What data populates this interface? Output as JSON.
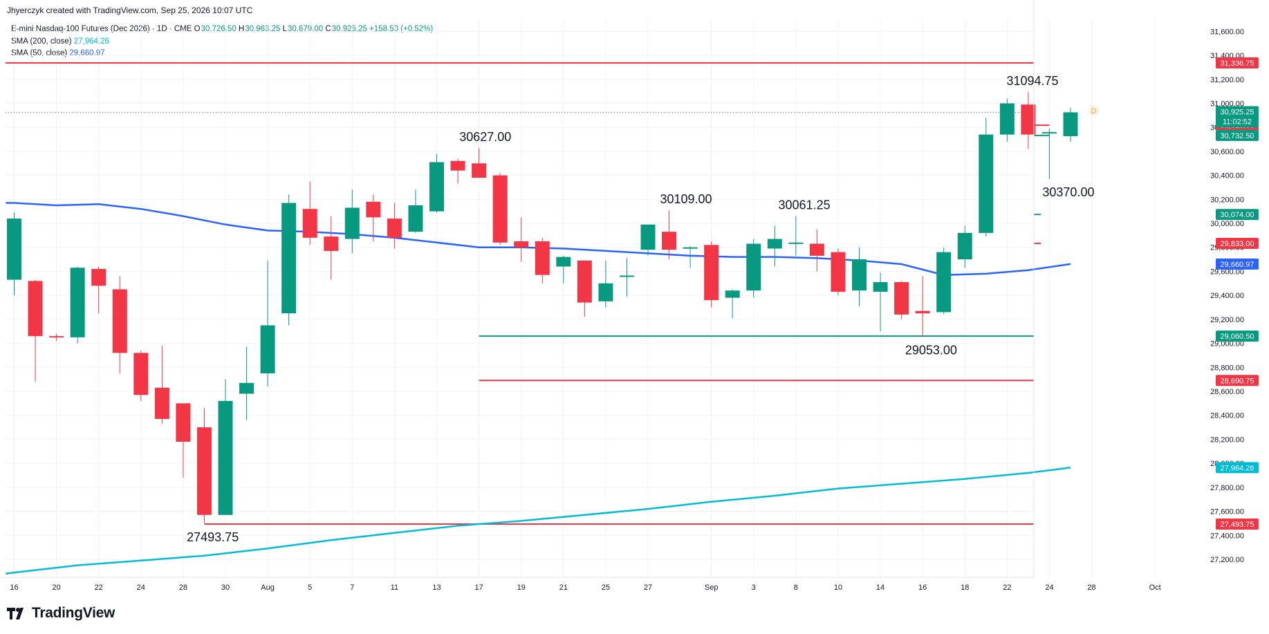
{
  "header": {
    "created_by": "Jhyerczyk created with TradingView.com, Sep 25, 2026 10:07 UTC"
  },
  "legend": {
    "symbol": "E-mini Nasdaq-100 Futures (Dec 2026) · 1D · CME",
    "o_label": "O",
    "o_val": "30,726.50",
    "h_label": "H",
    "h_val": "30,963.25",
    "l_label": "L",
    "l_val": "30,679.00",
    "c_label": "C",
    "c_val": "30,925.25",
    "change": "+158.50 (+0.52%)",
    "sma200_label": "SMA (200, close)",
    "sma200_val": "27,964.26",
    "sma50_label": "SMA (50, close)",
    "sma50_val": "29,660.97"
  },
  "brand": {
    "name": "TradingView"
  },
  "colors": {
    "up": "#089981",
    "down": "#f23645",
    "sma50": "#2962ff",
    "sma200": "#00bcd4",
    "grid": "#f0f3fa",
    "red_line": "#f23645",
    "green_line": "#089981",
    "earnings_marker": "#ff9800"
  },
  "chart_data": {
    "type": "candlestick",
    "title": "E-mini Nasdaq-100 Futures (Dec 2026)",
    "interval": "1D",
    "ylim": [
      27050,
      31700
    ],
    "yticks": [
      27200,
      27400,
      27600,
      27800,
      28000,
      28200,
      28400,
      28600,
      28800,
      29000,
      29200,
      29400,
      29600,
      29800,
      30000,
      30200,
      30400,
      30600,
      30800,
      31000,
      31200,
      31400,
      31600
    ],
    "ytick_labels": [
      "27,200.00",
      "27,400.00",
      "27,600.00",
      "27,800.00",
      "28,000.00",
      "28,200.00",
      "28,400.00",
      "28,600.00",
      "28,800.00",
      "29,000.00",
      "29,200.00",
      "29,400.00",
      "29,600.00",
      "29,800.00",
      "30,000.00",
      "30,200.00",
      "30,400.00",
      "30,600.00",
      "30,800.00",
      "31,000.00",
      "31,200.00",
      "31,400.00",
      "31,600.00"
    ],
    "xticks": [
      {
        "i": 0,
        "label": "16"
      },
      {
        "i": 2,
        "label": "20"
      },
      {
        "i": 4,
        "label": "22"
      },
      {
        "i": 6,
        "label": "24"
      },
      {
        "i": 8,
        "label": "28"
      },
      {
        "i": 10,
        "label": "30"
      },
      {
        "i": 12,
        "label": "Aug"
      },
      {
        "i": 14,
        "label": "5"
      },
      {
        "i": 16,
        "label": "7"
      },
      {
        "i": 18,
        "label": "11"
      },
      {
        "i": 20,
        "label": "13"
      },
      {
        "i": 22,
        "label": "17"
      },
      {
        "i": 24,
        "label": "19"
      },
      {
        "i": 26,
        "label": "21"
      },
      {
        "i": 28,
        "label": "25"
      },
      {
        "i": 30,
        "label": "27"
      },
      {
        "i": 33,
        "label": "Sep"
      },
      {
        "i": 35,
        "label": "3"
      },
      {
        "i": 37,
        "label": "8"
      },
      {
        "i": 39,
        "label": "10"
      },
      {
        "i": 41,
        "label": "14"
      },
      {
        "i": 43,
        "label": "16"
      },
      {
        "i": 45,
        "label": "18"
      },
      {
        "i": 47,
        "label": "22"
      },
      {
        "i": 49,
        "label": "24"
      },
      {
        "i": 51,
        "label": "28"
      },
      {
        "i": 54,
        "label": "Oct"
      }
    ],
    "candles": [
      {
        "o": 29530,
        "h": 30090,
        "l": 29400,
        "c": 30040
      },
      {
        "o": 29520,
        "h": 29530,
        "l": 28680,
        "c": 29060
      },
      {
        "o": 29060,
        "h": 29080,
        "l": 29020,
        "c": 29050
      },
      {
        "o": 29050,
        "h": 29640,
        "l": 29000,
        "c": 29630
      },
      {
        "o": 29620,
        "h": 29640,
        "l": 29250,
        "c": 29480
      },
      {
        "o": 29450,
        "h": 29560,
        "l": 28750,
        "c": 28920
      },
      {
        "o": 28920,
        "h": 28940,
        "l": 28520,
        "c": 28570
      },
      {
        "o": 28630,
        "h": 28980,
        "l": 28330,
        "c": 28370
      },
      {
        "o": 28500,
        "h": 28500,
        "l": 27880,
        "c": 28180
      },
      {
        "o": 28300,
        "h": 28460,
        "l": 27500,
        "c": 27570
      },
      {
        "o": 27570,
        "h": 28700,
        "l": 27570,
        "c": 28520
      },
      {
        "o": 28580,
        "h": 28970,
        "l": 28360,
        "c": 28670
      },
      {
        "o": 28750,
        "h": 29690,
        "l": 28640,
        "c": 29150
      },
      {
        "o": 29250,
        "h": 30240,
        "l": 29150,
        "c": 30170
      },
      {
        "o": 30120,
        "h": 30350,
        "l": 29820,
        "c": 29880
      },
      {
        "o": 29890,
        "h": 30060,
        "l": 29530,
        "c": 29770
      },
      {
        "o": 29870,
        "h": 30280,
        "l": 29750,
        "c": 30130
      },
      {
        "o": 30180,
        "h": 30240,
        "l": 29850,
        "c": 30050
      },
      {
        "o": 30040,
        "h": 30170,
        "l": 29790,
        "c": 29880
      },
      {
        "o": 29930,
        "h": 30280,
        "l": 29920,
        "c": 30150
      },
      {
        "o": 30100,
        "h": 30580,
        "l": 30090,
        "c": 30510
      },
      {
        "o": 30520,
        "h": 30540,
        "l": 30330,
        "c": 30440
      },
      {
        "o": 30500,
        "h": 30627,
        "l": 30380,
        "c": 30380
      },
      {
        "o": 30400,
        "h": 30420,
        "l": 29820,
        "c": 29840
      },
      {
        "o": 29850,
        "h": 30050,
        "l": 29680,
        "c": 29800
      },
      {
        "o": 29850,
        "h": 29880,
        "l": 29500,
        "c": 29570
      },
      {
        "o": 29640,
        "h": 29730,
        "l": 29500,
        "c": 29720
      },
      {
        "o": 29690,
        "h": 29690,
        "l": 29220,
        "c": 29340
      },
      {
        "o": 29350,
        "h": 29690,
        "l": 29300,
        "c": 29500
      },
      {
        "o": 29565,
        "h": 29710,
        "l": 29390,
        "c": 29565
      },
      {
        "o": 29780,
        "h": 29990,
        "l": 29730,
        "c": 29990
      },
      {
        "o": 29930,
        "h": 30109,
        "l": 29700,
        "c": 29780
      },
      {
        "o": 29790,
        "h": 29810,
        "l": 29630,
        "c": 29800
      },
      {
        "o": 29820,
        "h": 29850,
        "l": 29300,
        "c": 29360
      },
      {
        "o": 29380,
        "h": 29450,
        "l": 29210,
        "c": 29440
      },
      {
        "o": 29440,
        "h": 29870,
        "l": 29380,
        "c": 29830
      },
      {
        "o": 29790,
        "h": 29980,
        "l": 29640,
        "c": 29870
      },
      {
        "o": 29840,
        "h": 30061,
        "l": 29730,
        "c": 29840
      },
      {
        "o": 29830,
        "h": 29950,
        "l": 29600,
        "c": 29730
      },
      {
        "o": 29760,
        "h": 29790,
        "l": 29400,
        "c": 29430
      },
      {
        "o": 29440,
        "h": 29800,
        "l": 29310,
        "c": 29700
      },
      {
        "o": 29430,
        "h": 29590,
        "l": 29100,
        "c": 29510
      },
      {
        "o": 29510,
        "h": 29520,
        "l": 29200,
        "c": 29240
      },
      {
        "o": 29270,
        "h": 29560,
        "l": 29053,
        "c": 29250
      },
      {
        "o": 29260,
        "h": 29800,
        "l": 29240,
        "c": 29760
      },
      {
        "o": 29700,
        "h": 29980,
        "l": 29630,
        "c": 29920
      },
      {
        "o": 29920,
        "h": 30880,
        "l": 29890,
        "c": 30740
      },
      {
        "o": 30740,
        "h": 31040,
        "l": 30680,
        "c": 31000
      },
      {
        "o": 30990,
        "h": 31094,
        "l": 30620,
        "c": 30740
      },
      {
        "o": 30760,
        "h": 30790,
        "l": 30370,
        "c": 30760
      },
      {
        "o": 30726.5,
        "h": 30963.25,
        "l": 30679,
        "c": 30925.25
      }
    ],
    "sma50": [
      [
        0,
        30170
      ],
      [
        2,
        30150
      ],
      [
        4,
        30160
      ],
      [
        6,
        30120
      ],
      [
        8,
        30060
      ],
      [
        10,
        29990
      ],
      [
        12,
        29940
      ],
      [
        14,
        29930
      ],
      [
        16,
        29910
      ],
      [
        18,
        29880
      ],
      [
        20,
        29840
      ],
      [
        22,
        29800
      ],
      [
        24,
        29800
      ],
      [
        26,
        29790
      ],
      [
        28,
        29770
      ],
      [
        30,
        29750
      ],
      [
        32,
        29730
      ],
      [
        34,
        29720
      ],
      [
        36,
        29720
      ],
      [
        38,
        29710
      ],
      [
        40,
        29690
      ],
      [
        42,
        29660
      ],
      [
        44,
        29570
      ],
      [
        46,
        29580
      ],
      [
        48,
        29610
      ],
      [
        50,
        29660.97
      ]
    ],
    "sma200": [
      [
        0,
        27090
      ],
      [
        3,
        27150
      ],
      [
        6,
        27190
      ],
      [
        9,
        27230
      ],
      [
        12,
        27290
      ],
      [
        15,
        27360
      ],
      [
        18,
        27420
      ],
      [
        21,
        27480
      ],
      [
        24,
        27520
      ],
      [
        27,
        27570
      ],
      [
        30,
        27620
      ],
      [
        33,
        27680
      ],
      [
        36,
        27730
      ],
      [
        39,
        27790
      ],
      [
        42,
        27830
      ],
      [
        45,
        27870
      ],
      [
        48,
        27920
      ],
      [
        50,
        27964.26
      ]
    ],
    "hlines": [
      {
        "y": 31336.75,
        "color": "red",
        "from": -1,
        "label": "31,336.75"
      },
      {
        "y": 30818,
        "color": "red",
        "from": 49,
        "label": "30,818.00"
      },
      {
        "y": 30732.5,
        "color": "green",
        "from": 49,
        "label": "30,732.50"
      },
      {
        "y": 30074,
        "color": "green",
        "from": 48.6,
        "label": "30,074.00"
      },
      {
        "y": 29833,
        "color": "red",
        "from": 48.6,
        "label": "29,833.00"
      },
      {
        "y": 29060.5,
        "color": "green",
        "from": 22,
        "label": "29,060.50"
      },
      {
        "y": 28690.75,
        "color": "red",
        "from": 22,
        "label": "28,690.75"
      },
      {
        "y": 27493.75,
        "color": "red",
        "from": 9,
        "label": "27,493.75"
      }
    ],
    "last_price": {
      "value": 30925.25,
      "label": "30,925.25",
      "countdown": "11:02:52"
    },
    "axis_tags": [
      {
        "y": 29660.97,
        "label": "29,660.97",
        "series": "sma50"
      },
      {
        "y": 27964.26,
        "label": "27,964.26",
        "series": "sma200"
      }
    ],
    "annotations": [
      {
        "text": "31094.75",
        "i": 48.2,
        "y": 31094.75,
        "pos": "above"
      },
      {
        "text": "30627.00",
        "i": 22.3,
        "y": 30627,
        "pos": "above"
      },
      {
        "text": "30109.00",
        "i": 31.8,
        "y": 30109,
        "pos": "above"
      },
      {
        "text": "30061.25",
        "i": 37.4,
        "y": 30061.25,
        "pos": "above"
      },
      {
        "text": "30370.00",
        "i": 49.9,
        "y": 30370,
        "pos": "below"
      },
      {
        "text": "29053.00",
        "i": 43.4,
        "y": 29053,
        "pos": "below"
      },
      {
        "text": "27493.75",
        "i": 9.4,
        "y": 27493.75,
        "pos": "below"
      }
    ],
    "earnings_marker": {
      "label": "D",
      "i": 51
    }
  }
}
